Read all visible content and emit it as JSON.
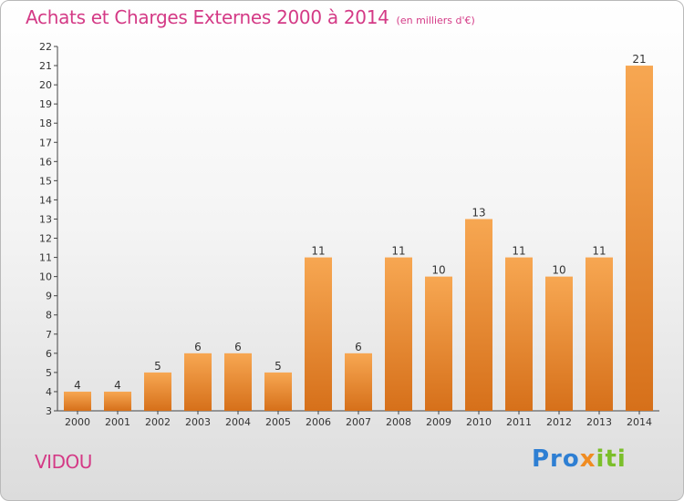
{
  "title": "Achats et Charges Externes 2000 à 2014",
  "unit_note": "(en milliers d'€)",
  "commune": "VIDOU",
  "brand": {
    "p1": "Pro",
    "p2": "x",
    "p3": "iti"
  },
  "colors": {
    "bar_light": "#f7a752",
    "bar_dark": "#d6701a",
    "title": "#d43a86"
  },
  "chart_data": {
    "type": "bar",
    "title": "Achats et Charges Externes 2000 à 2014",
    "categories": [
      "2000",
      "2001",
      "2002",
      "2003",
      "2004",
      "2005",
      "2006",
      "2007",
      "2008",
      "2009",
      "2010",
      "2011",
      "2012",
      "2013",
      "2014"
    ],
    "values": [
      4,
      4,
      5,
      6,
      6,
      5,
      11,
      6,
      11,
      10,
      13,
      11,
      10,
      11,
      21
    ],
    "ylim": [
      3,
      22
    ],
    "yticks": [
      3,
      4,
      5,
      6,
      7,
      8,
      9,
      10,
      11,
      12,
      13,
      14,
      15,
      16,
      17,
      18,
      19,
      20,
      21,
      22
    ],
    "xlabel": "",
    "ylabel": "",
    "grid": false,
    "legend": "none"
  }
}
